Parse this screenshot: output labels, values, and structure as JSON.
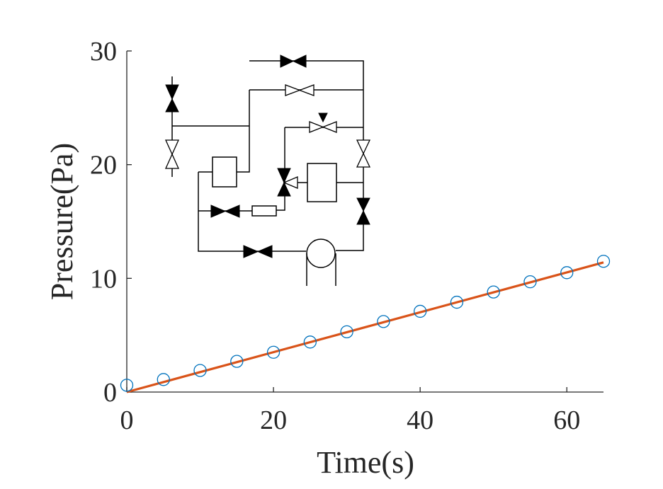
{
  "chart_data": {
    "type": "scatter",
    "xlabel": "Time(s)",
    "ylabel": "Pressure(Pa)",
    "xlim": [
      0,
      65
    ],
    "ylim": [
      0,
      30
    ],
    "xticks": [
      0,
      20,
      40,
      60
    ],
    "yticks": [
      0,
      10,
      20,
      30
    ],
    "grid": false,
    "series": [
      {
        "kind": "markers",
        "marker": "open-circle",
        "color": "#0072BD",
        "x": [
          0,
          5,
          10,
          15,
          20,
          25,
          30,
          35,
          40,
          45,
          50,
          55,
          60,
          65
        ],
        "y": [
          0.6,
          1.1,
          1.9,
          2.7,
          3.5,
          4.4,
          5.3,
          6.2,
          7.1,
          7.9,
          8.8,
          9.7,
          10.5,
          11.5
        ]
      },
      {
        "kind": "line",
        "color": "#D95319",
        "x": [
          0,
          65
        ],
        "y": [
          0,
          11.4
        ]
      }
    ]
  }
}
